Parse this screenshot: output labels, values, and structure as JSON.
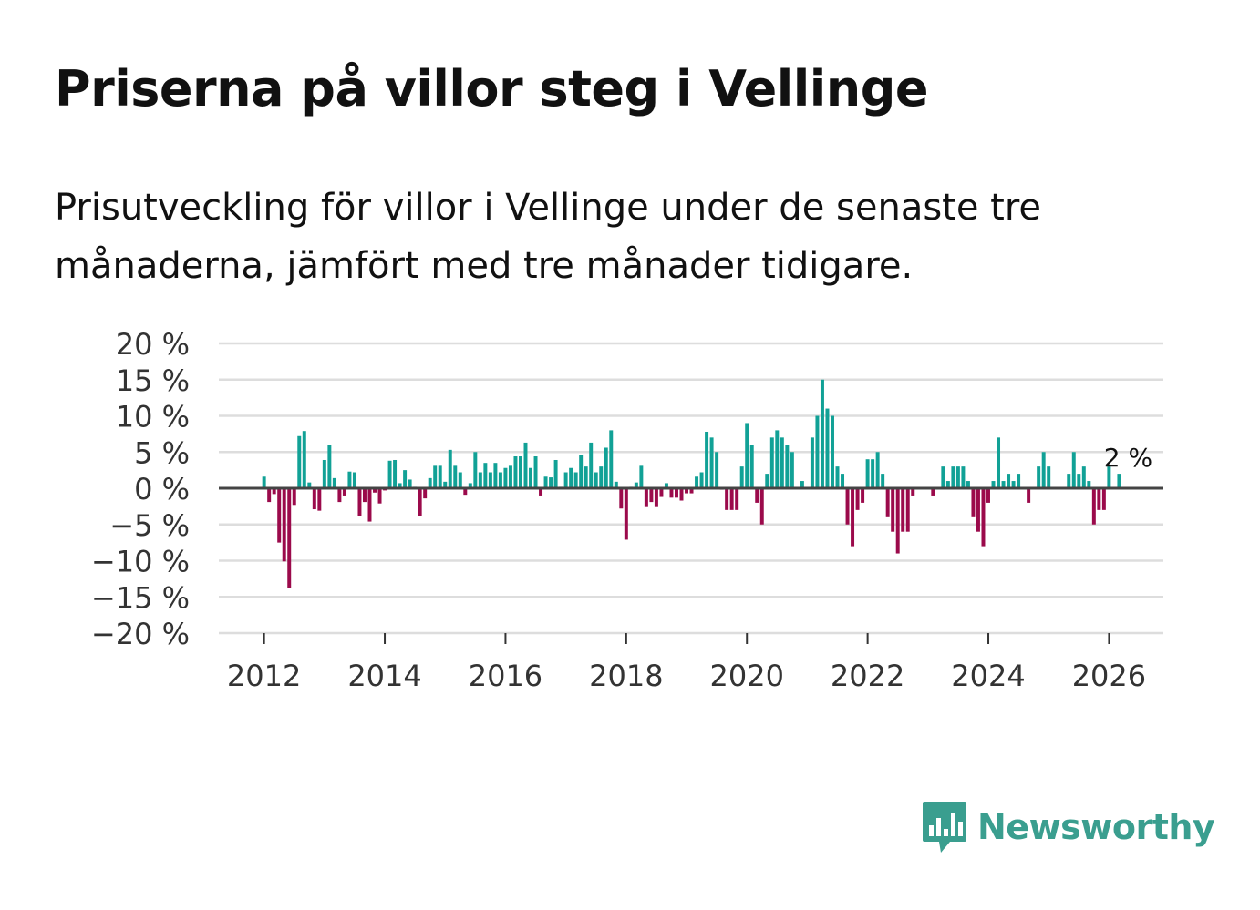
{
  "title": "Priserna på villor steg i Vellinge",
  "subtitle": "Prisutveckling för villor i Vellinge under de senaste tre månaderna, jämfört med tre månader tidigare.",
  "brand": {
    "name": "Newsworthy",
    "icon": "newsworthy-bar-chart-icon",
    "color": "#3a9e8f"
  },
  "colors": {
    "positive": "#11a196",
    "negative": "#9b0a4b",
    "zero_line": "#444444",
    "grid": "#dddddd"
  },
  "chart_data": {
    "type": "bar",
    "title": "",
    "xlabel": "",
    "ylabel": "",
    "ylim": [
      -20,
      20
    ],
    "y_ticks": [
      20,
      15,
      10,
      5,
      0,
      -5,
      -10,
      -15,
      -20
    ],
    "y_tick_labels": [
      "20 %",
      "15 %",
      "10 %",
      "5 %",
      "0 %",
      "−5 %",
      "−10 %",
      "−15 %",
      "−20 %"
    ],
    "x_ticks": [
      2012,
      2014,
      2016,
      2018,
      2020,
      2022,
      2024,
      2026
    ],
    "x_tick_labels": [
      "2012",
      "2014",
      "2016",
      "2018",
      "2020",
      "2022",
      "2024",
      "2026"
    ],
    "x_range": [
      2011.25,
      2026.9
    ],
    "start": 2012.0,
    "step": 0.08333,
    "annotation": {
      "text": "2 %",
      "position": "last-bar"
    },
    "values": [
      1.6,
      -1.9,
      -0.8,
      -7.5,
      -10.1,
      -13.8,
      -2.3,
      7.2,
      7.9,
      0.8,
      -2.9,
      -3.1,
      3.9,
      6.0,
      1.4,
      -1.9,
      -1.0,
      2.3,
      2.2,
      -3.8,
      -1.9,
      -4.6,
      -0.6,
      -2.1,
      -0.3,
      3.8,
      3.9,
      0.7,
      2.5,
      1.2,
      0.2,
      -3.8,
      -1.4,
      1.4,
      3.1,
      3.1,
      0.9,
      5.3,
      3.1,
      2.2,
      -0.9,
      0.7,
      5.0,
      2.2,
      3.5,
      2.2,
      3.5,
      2.2,
      2.8,
      3.1,
      4.4,
      4.4,
      6.3,
      2.8,
      4.4,
      -1.0,
      1.6,
      1.5,
      3.9,
      0.2,
      2.2,
      2.8,
      2.2,
      4.6,
      3.0,
      6.3,
      2.2,
      3.0,
      5.6,
      8.0,
      0.9,
      -2.8,
      -7.1,
      0.2,
      0.8,
      3.1,
      -2.6,
      -1.9,
      -2.6,
      -1.2,
      0.7,
      -1.3,
      -1.3,
      -1.7,
      -0.7,
      -0.7,
      1.6,
      2.2,
      7.8,
      7.0,
      5.0,
      -0.2,
      -3.0,
      -3.0,
      -3.0,
      3.0,
      9.0,
      6.0,
      -2.0,
      -5.0,
      2.0,
      7.0,
      8.0,
      7.0,
      6.0,
      5.0,
      0.0,
      1.0,
      0.0,
      7.0,
      10.0,
      15.0,
      11.0,
      10.0,
      3.0,
      2.0,
      -5.0,
      -8.0,
      -3.0,
      -2.0,
      4.0,
      4.0,
      5.0,
      2.0,
      -4.0,
      -6.0,
      -9.0,
      -6.0,
      -6.0,
      -1.0,
      0.0,
      0.0,
      0.0,
      -1.0,
      0.0,
      3.0,
      1.0,
      3.0,
      3.0,
      3.0,
      1.0,
      -4.0,
      -6.0,
      -8.0,
      -2.0,
      1.0,
      7.0,
      1.0,
      2.0,
      1.0,
      2.0,
      0.0,
      -2.0,
      0.0,
      3.0,
      5.0,
      3.0,
      0.0,
      0.0,
      0.0,
      2.0,
      5.0,
      2.0,
      3.0,
      1.0,
      -5.0,
      -3.0,
      -3.0,
      3.0,
      0.0,
      2.0
    ]
  }
}
